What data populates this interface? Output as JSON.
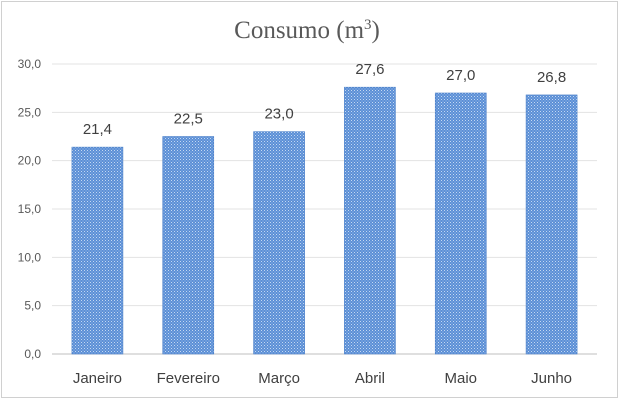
{
  "chart_data": {
    "type": "bar",
    "title": "Consumo (m",
    "title_superscript": "3",
    "title_suffix": ")",
    "categories": [
      "Janeiro",
      "Fevereiro",
      "Março",
      "Abril",
      "Maio",
      "Junho"
    ],
    "values": [
      21.4,
      22.5,
      23.0,
      27.6,
      27.0,
      26.8
    ],
    "value_labels": [
      "21,4",
      "22,5",
      "23,0",
      "27,6",
      "27,0",
      "26,8"
    ],
    "y_ticks": [
      0,
      5,
      10,
      15,
      20,
      25,
      30
    ],
    "y_tick_labels": [
      "0,0",
      "5,0",
      "10,0",
      "15,0",
      "20,0",
      "25,0",
      "30,0"
    ],
    "ylim": [
      0,
      30
    ],
    "grid": true,
    "legend": "none",
    "bar_color": "#5b8fd6",
    "bar_pattern_color": "#b9d0ee"
  }
}
